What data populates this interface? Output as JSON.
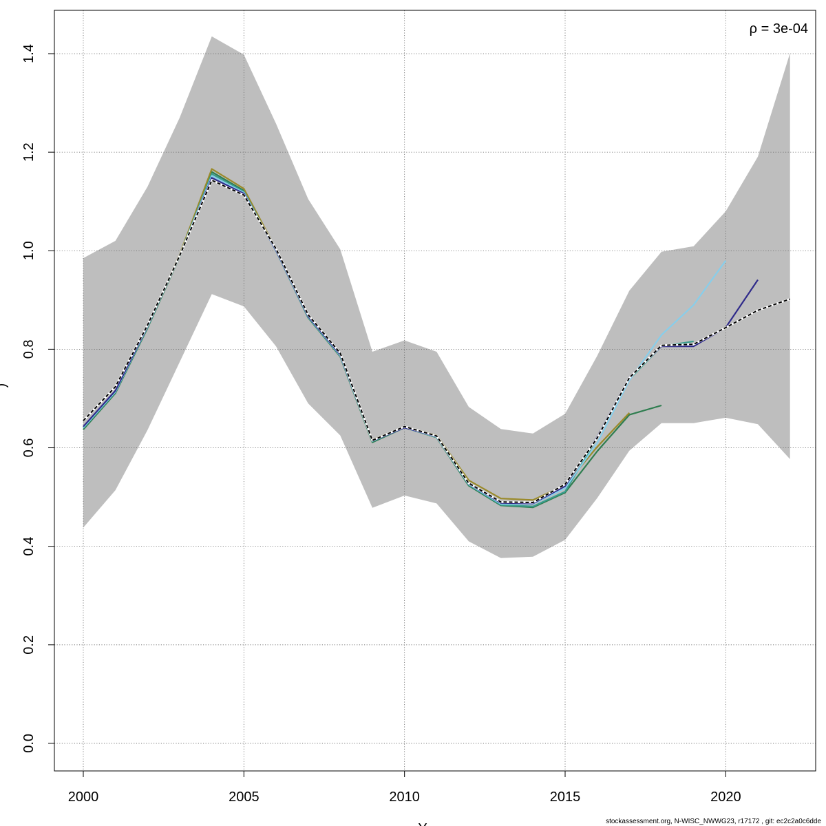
{
  "chart_data": {
    "type": "line",
    "title": "",
    "xlabel": "Y",
    "ylabel": ")",
    "xlim": [
      1999.1,
      2022.8
    ],
    "ylim": [
      -0.056,
      1.488
    ],
    "x_ticks": [
      2000,
      2005,
      2010,
      2015,
      2020
    ],
    "y_ticks": [
      0.0,
      0.2,
      0.4,
      0.6,
      0.8,
      1.0,
      1.2,
      1.4
    ],
    "x_tick_labels": [
      "2000",
      "2005",
      "2010",
      "2015",
      "2020"
    ],
    "y_tick_labels": [
      "0.0",
      "0.2",
      "0.4",
      "0.6",
      "0.8",
      "1.0",
      "1.2",
      "1.4"
    ],
    "grid": true,
    "annotation": "ρ = 3e-04",
    "footer": "stockassessment.org, N-WISC_NWWG23, r17172 , git: ec2c2a0c6dde",
    "confidence_band": {
      "x": [
        2000,
        2001,
        2002,
        2003,
        2004,
        2005,
        2006,
        2007,
        2008,
        2009,
        2010,
        2011,
        2012,
        2013,
        2014,
        2015,
        2016,
        2017,
        2018,
        2019,
        2020,
        2021,
        2022
      ],
      "upper": [
        0.985,
        1.02,
        1.13,
        1.27,
        1.435,
        1.398,
        1.258,
        1.105,
        1.003,
        0.795,
        0.818,
        0.795,
        0.683,
        0.638,
        0.629,
        0.669,
        0.787,
        0.919,
        0.998,
        1.009,
        1.08,
        1.191,
        1.401
      ],
      "lower": [
        0.438,
        0.514,
        0.636,
        0.774,
        0.912,
        0.887,
        0.806,
        0.69,
        0.625,
        0.478,
        0.503,
        0.487,
        0.41,
        0.376,
        0.379,
        0.413,
        0.498,
        0.594,
        0.65,
        0.65,
        0.661,
        0.648,
        0.577
      ],
      "color": "#bebebe"
    },
    "series": [
      {
        "color": "#2e7d4f",
        "x": [
          2000,
          2001,
          2002,
          2003,
          2004,
          2005,
          2006,
          2007,
          2008,
          2009,
          2010,
          2011,
          2012,
          2013,
          2014,
          2015,
          2016,
          2017,
          2018
        ],
        "values": [
          0.637,
          0.711,
          0.843,
          0.988,
          1.16,
          1.122,
          1.0,
          0.864,
          0.785,
          0.611,
          0.641,
          0.621,
          0.523,
          0.483,
          0.479,
          0.509,
          0.593,
          0.667,
          0.686
        ]
      },
      {
        "color": "#9a8a2a",
        "x": [
          2000,
          2001,
          2002,
          2003,
          2004,
          2005,
          2006,
          2007,
          2008,
          2009,
          2010,
          2011,
          2012,
          2013,
          2014,
          2015,
          2016,
          2017
        ],
        "values": [
          0.642,
          0.714,
          0.848,
          0.992,
          1.166,
          1.126,
          1.003,
          0.868,
          0.789,
          0.616,
          0.643,
          0.625,
          0.534,
          0.497,
          0.494,
          0.524,
          0.602,
          0.671
        ]
      },
      {
        "color": "#3a9d8f",
        "x": [
          2000,
          2001,
          2002,
          2003,
          2004,
          2005,
          2006,
          2007,
          2008,
          2009,
          2010,
          2011,
          2012,
          2013,
          2014,
          2015,
          2016,
          2017,
          2018,
          2019
        ],
        "values": [
          0.64,
          0.713,
          0.845,
          0.99,
          1.156,
          1.12,
          1.0,
          0.865,
          0.787,
          0.613,
          0.641,
          0.622,
          0.525,
          0.484,
          0.481,
          0.511,
          0.62,
          0.739,
          0.806,
          0.816
        ]
      },
      {
        "color": "#87ceeb",
        "x": [
          2000,
          2001,
          2002,
          2003,
          2004,
          2005,
          2006,
          2007,
          2008,
          2009,
          2010,
          2011,
          2012,
          2013,
          2014,
          2015,
          2016,
          2017,
          2018,
          2019,
          2020
        ],
        "values": [
          0.641,
          0.714,
          0.846,
          0.99,
          1.152,
          1.118,
          1.0,
          0.866,
          0.787,
          0.614,
          0.641,
          0.622,
          0.526,
          0.486,
          0.486,
          0.518,
          0.61,
          0.737,
          0.829,
          0.89,
          0.98
        ]
      },
      {
        "color": "#2f2a8a",
        "x": [
          2000,
          2001,
          2002,
          2003,
          2004,
          2005,
          2006,
          2007,
          2008,
          2009,
          2010,
          2011,
          2012,
          2013,
          2014,
          2015,
          2016,
          2017,
          2018,
          2019,
          2020,
          2021
        ],
        "values": [
          0.643,
          0.716,
          0.847,
          0.989,
          1.148,
          1.116,
          1.001,
          0.867,
          0.789,
          0.614,
          0.641,
          0.623,
          0.527,
          0.488,
          0.487,
          0.522,
          0.622,
          0.743,
          0.806,
          0.806,
          0.844,
          0.941
        ]
      },
      {
        "color": "#000000",
        "dashed": true,
        "x": [
          2000,
          2001,
          2002,
          2003,
          2004,
          2005,
          2006,
          2007,
          2008,
          2009,
          2010,
          2011,
          2012,
          2013,
          2014,
          2015,
          2016,
          2017,
          2018,
          2019,
          2020,
          2021,
          2022
        ],
        "values": [
          0.655,
          0.724,
          0.849,
          0.99,
          1.143,
          1.113,
          1.004,
          0.87,
          0.792,
          0.615,
          0.643,
          0.624,
          0.528,
          0.49,
          0.489,
          0.526,
          0.62,
          0.742,
          0.808,
          0.81,
          0.844,
          0.879,
          0.902
        ]
      }
    ]
  }
}
